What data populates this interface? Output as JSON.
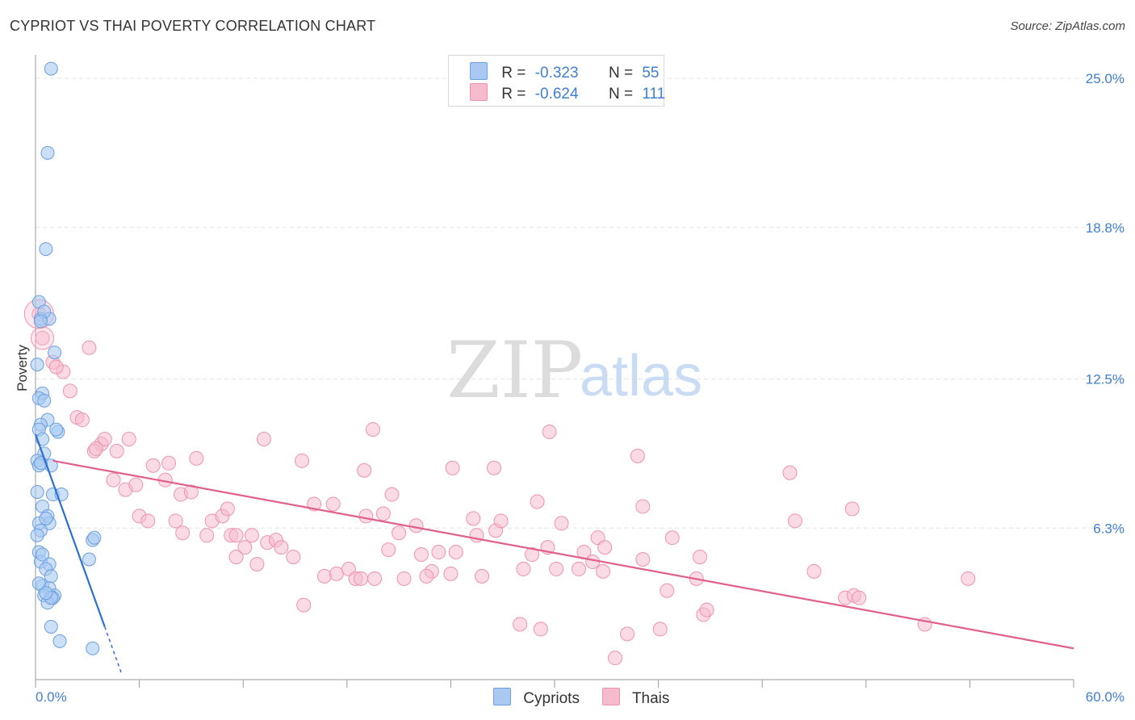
{
  "header": {
    "title": "CYPRIOT VS THAI POVERTY CORRELATION CHART",
    "source": "Source: ZipAtlas.com"
  },
  "legend_top": [
    {
      "r_label": "R =",
      "r_value": "-0.323",
      "n_label": "N =",
      "n_value": "55"
    },
    {
      "r_label": "R =",
      "r_value": "-0.624",
      "n_label": "N =",
      "n_value": "111"
    }
  ],
  "legend_bottom": [
    {
      "label": "Cypriots"
    },
    {
      "label": "Thais"
    }
  ],
  "watermark": {
    "zip": "ZIP",
    "atlas": "atlas"
  },
  "colors": {
    "cypriot_fill": "#a9c9f2",
    "cypriot_stroke": "#6b9fe0",
    "cypriot_line": "#2d6fd0",
    "thai_fill": "#f6bccd",
    "thai_stroke": "#ee93ae",
    "thai_line": "#e0608a",
    "tick_label": "#3f7fd0",
    "grid": "#e3e3e3"
  },
  "chart_data": {
    "type": "scatter",
    "title": "CYPRIOT VS THAI POVERTY CORRELATION CHART",
    "ylabel": "Poverty",
    "xlabel": "",
    "xlim": [
      0,
      60
    ],
    "ylim": [
      0,
      26
    ],
    "x_tick_labels": [
      {
        "value": 0,
        "label": "0.0%"
      },
      {
        "value": 60,
        "label": "60.0%"
      }
    ],
    "y_tick_labels": [
      {
        "value": 6.3,
        "label": "6.3%"
      },
      {
        "value": 12.5,
        "label": "12.5%"
      },
      {
        "value": 18.8,
        "label": "18.8%"
      },
      {
        "value": 25.0,
        "label": "25.0%"
      }
    ],
    "grid": true,
    "legend_position": "top-center",
    "series": [
      {
        "name": "Cypriots",
        "r": -0.323,
        "n": 55,
        "trend": {
          "x0": 0.0,
          "y0": 10.2,
          "x1": 4.0,
          "y1": 2.2,
          "dashed_to_x": 5.0
        },
        "points": [
          [
            0.9,
            25.4
          ],
          [
            0.7,
            21.9
          ],
          [
            0.6,
            17.9
          ],
          [
            0.2,
            15.7
          ],
          [
            0.3,
            15.0
          ],
          [
            0.8,
            15.0
          ],
          [
            0.5,
            15.3
          ],
          [
            1.1,
            13.6
          ],
          [
            0.1,
            13.1
          ],
          [
            0.4,
            11.9
          ],
          [
            0.2,
            11.7
          ],
          [
            0.7,
            10.8
          ],
          [
            0.3,
            10.6
          ],
          [
            0.2,
            10.4
          ],
          [
            1.3,
            10.3
          ],
          [
            1.2,
            10.4
          ],
          [
            0.4,
            10.0
          ],
          [
            0.5,
            9.4
          ],
          [
            0.1,
            9.1
          ],
          [
            0.9,
            8.9
          ],
          [
            0.2,
            8.9
          ],
          [
            0.1,
            7.8
          ],
          [
            1.0,
            7.7
          ],
          [
            1.5,
            7.7
          ],
          [
            0.4,
            7.2
          ],
          [
            0.7,
            6.8
          ],
          [
            0.8,
            6.5
          ],
          [
            0.2,
            6.5
          ],
          [
            0.3,
            6.2
          ],
          [
            0.1,
            6.0
          ],
          [
            3.3,
            5.8
          ],
          [
            3.4,
            5.9
          ],
          [
            0.2,
            5.3
          ],
          [
            3.1,
            5.0
          ],
          [
            0.3,
            4.9
          ],
          [
            0.8,
            4.8
          ],
          [
            0.6,
            4.6
          ],
          [
            0.9,
            4.3
          ],
          [
            0.4,
            3.9
          ],
          [
            0.8,
            3.8
          ],
          [
            0.5,
            3.5
          ],
          [
            1.1,
            3.5
          ],
          [
            1.0,
            3.4
          ],
          [
            0.7,
            3.2
          ],
          [
            0.9,
            3.4
          ],
          [
            0.9,
            2.2
          ],
          [
            1.4,
            1.6
          ],
          [
            3.3,
            1.3
          ],
          [
            0.3,
            14.9
          ],
          [
            0.5,
            11.6
          ],
          [
            0.3,
            9.0
          ],
          [
            0.6,
            6.7
          ],
          [
            0.4,
            5.2
          ],
          [
            0.2,
            4.0
          ],
          [
            0.6,
            3.6
          ]
        ]
      },
      {
        "name": "Thais",
        "r": -0.624,
        "n": 111,
        "trend": {
          "x0": 1.0,
          "y0": 9.1,
          "x1": 60.0,
          "y1": 1.3
        },
        "points": [
          [
            0.2,
            15.2
          ],
          [
            0.4,
            14.2
          ],
          [
            1.0,
            13.2
          ],
          [
            1.6,
            12.8
          ],
          [
            3.1,
            13.8
          ],
          [
            1.2,
            13.0
          ],
          [
            2.0,
            12.0
          ],
          [
            2.4,
            10.9
          ],
          [
            2.7,
            10.8
          ],
          [
            3.8,
            9.8
          ],
          [
            3.4,
            9.5
          ],
          [
            4.0,
            10.0
          ],
          [
            4.7,
            9.5
          ],
          [
            5.4,
            10.0
          ],
          [
            3.5,
            9.6
          ],
          [
            4.5,
            8.3
          ],
          [
            5.2,
            7.9
          ],
          [
            5.8,
            8.1
          ],
          [
            6.8,
            8.9
          ],
          [
            7.5,
            8.3
          ],
          [
            7.7,
            9.0
          ],
          [
            9.3,
            9.2
          ],
          [
            6.0,
            6.8
          ],
          [
            6.5,
            6.6
          ],
          [
            8.1,
            6.6
          ],
          [
            8.4,
            7.7
          ],
          [
            9.0,
            7.8
          ],
          [
            10.2,
            6.6
          ],
          [
            10.8,
            6.8
          ],
          [
            11.1,
            7.1
          ],
          [
            8.5,
            6.1
          ],
          [
            9.9,
            6.0
          ],
          [
            11.3,
            6.0
          ],
          [
            11.6,
            6.0
          ],
          [
            12.5,
            6.0
          ],
          [
            12.1,
            5.5
          ],
          [
            11.6,
            5.1
          ],
          [
            13.4,
            5.7
          ],
          [
            13.9,
            5.8
          ],
          [
            14.2,
            5.5
          ],
          [
            14.9,
            5.1
          ],
          [
            12.8,
            4.8
          ],
          [
            13.2,
            10.0
          ],
          [
            15.4,
            9.1
          ],
          [
            16.1,
            7.3
          ],
          [
            17.2,
            7.3
          ],
          [
            16.7,
            4.3
          ],
          [
            17.4,
            4.4
          ],
          [
            18.1,
            4.6
          ],
          [
            18.5,
            4.2
          ],
          [
            18.8,
            4.2
          ],
          [
            19.6,
            4.2
          ],
          [
            20.1,
            6.9
          ],
          [
            19.1,
            6.8
          ],
          [
            15.5,
            3.1
          ],
          [
            19.0,
            8.7
          ],
          [
            19.5,
            10.4
          ],
          [
            20.6,
            7.7
          ],
          [
            20.4,
            5.4
          ],
          [
            21.3,
            4.2
          ],
          [
            21.0,
            6.1
          ],
          [
            22.0,
            6.4
          ],
          [
            22.3,
            5.2
          ],
          [
            22.9,
            4.5
          ],
          [
            22.6,
            4.3
          ],
          [
            23.3,
            5.3
          ],
          [
            24.3,
            5.3
          ],
          [
            24.0,
            4.4
          ],
          [
            24.1,
            8.8
          ],
          [
            25.3,
            6.7
          ],
          [
            25.8,
            4.3
          ],
          [
            25.5,
            6.0
          ],
          [
            26.6,
            6.2
          ],
          [
            26.9,
            6.6
          ],
          [
            26.5,
            8.8
          ],
          [
            28.2,
            4.6
          ],
          [
            28.0,
            2.3
          ],
          [
            28.7,
            5.2
          ],
          [
            29.0,
            7.4
          ],
          [
            29.7,
            10.3
          ],
          [
            29.6,
            5.5
          ],
          [
            30.4,
            6.5
          ],
          [
            29.2,
            2.1
          ],
          [
            30.1,
            4.6
          ],
          [
            31.7,
            5.3
          ],
          [
            32.2,
            4.9
          ],
          [
            31.4,
            4.6
          ],
          [
            32.5,
            5.9
          ],
          [
            32.9,
            5.5
          ],
          [
            32.8,
            4.5
          ],
          [
            34.8,
            9.3
          ],
          [
            35.1,
            5.0
          ],
          [
            34.2,
            1.9
          ],
          [
            35.1,
            7.2
          ],
          [
            36.1,
            2.1
          ],
          [
            36.5,
            3.7
          ],
          [
            36.8,
            5.9
          ],
          [
            38.2,
            4.2
          ],
          [
            38.4,
            5.1
          ],
          [
            38.6,
            2.7
          ],
          [
            38.8,
            2.9
          ],
          [
            43.6,
            8.6
          ],
          [
            43.9,
            6.6
          ],
          [
            45.0,
            4.5
          ],
          [
            46.8,
            3.4
          ],
          [
            47.3,
            3.5
          ],
          [
            47.6,
            3.4
          ],
          [
            47.2,
            7.1
          ],
          [
            51.4,
            2.3
          ],
          [
            53.9,
            4.2
          ],
          [
            33.5,
            0.9
          ]
        ]
      }
    ]
  }
}
